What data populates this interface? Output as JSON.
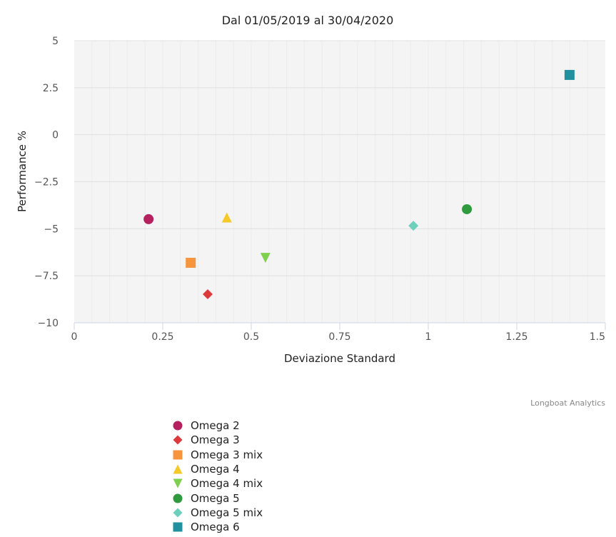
{
  "chart_data": {
    "type": "scatter",
    "title": "Dal 01/05/2019 al 30/04/2020",
    "xlabel": "Deviazione Standard",
    "ylabel": "Performance %",
    "xlim": [
      0,
      1.5
    ],
    "ylim": [
      -10,
      5
    ],
    "xticks": [
      "0",
      "0.25",
      "0.5",
      "0.75",
      "1",
      "1.25",
      "1.5"
    ],
    "xtick_values": [
      0,
      0.25,
      0.5,
      0.75,
      1,
      1.25,
      1.5
    ],
    "yticks": [
      "5",
      "2.5",
      "0",
      "−2.5",
      "−5",
      "−7.5",
      "−10"
    ],
    "ytick_values": [
      5,
      2.5,
      0,
      -2.5,
      -5,
      -7.5,
      -10
    ],
    "grid": true,
    "legend_position": "bottom-left",
    "credits": "Longboat Analytics",
    "series": [
      {
        "name": "Omega 2",
        "symbol": "circle",
        "color": "#b5215e",
        "x": 0.21,
        "y": -4.49
      },
      {
        "name": "Omega 3",
        "symbol": "diamond",
        "color": "#dd3b3b",
        "x": 0.377,
        "y": -8.48
      },
      {
        "name": "Omega 3 mix",
        "symbol": "square",
        "color": "#f7953c",
        "x": 0.329,
        "y": -6.81
      },
      {
        "name": "Omega 4",
        "symbol": "triangle",
        "color": "#f5c928",
        "x": 0.431,
        "y": -4.4
      },
      {
        "name": "Omega 4 mix",
        "symbol": "triangle-down",
        "color": "#7ed04e",
        "x": 0.54,
        "y": -6.55
      },
      {
        "name": "Omega 5",
        "symbol": "circle",
        "color": "#2f9a3e",
        "x": 1.109,
        "y": -3.96
      },
      {
        "name": "Omega 5 mix",
        "symbol": "diamond",
        "color": "#6fcfbd",
        "x": 0.958,
        "y": -4.84
      },
      {
        "name": "Omega 6",
        "symbol": "square",
        "color": "#22919f",
        "x": 1.399,
        "y": 3.18
      }
    ]
  }
}
